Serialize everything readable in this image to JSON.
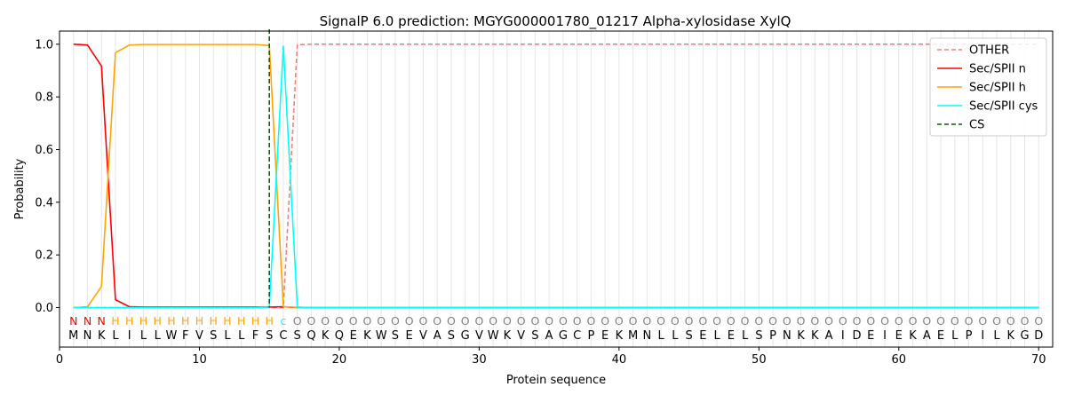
{
  "chart_data": {
    "type": "line",
    "title": "SignalP 6.0 prediction: MGYG000001780_01217 Alpha-xylosidase XylQ",
    "xlabel": "Protein sequence",
    "ylabel": "Probability",
    "xlim": [
      0,
      71
    ],
    "ylim": [
      -0.15,
      1.05
    ],
    "xticks": [
      0,
      10,
      20,
      30,
      40,
      50,
      60,
      70
    ],
    "yticks": [
      0.0,
      0.2,
      0.4,
      0.6,
      0.8,
      1.0
    ],
    "xtick_labels": [
      "0",
      "10",
      "20",
      "30",
      "40",
      "50",
      "60",
      "70"
    ],
    "ytick_labels": [
      "0.0",
      "0.2",
      "0.4",
      "0.6",
      "0.8",
      "1.0"
    ],
    "grid": "vertical lines at each residue",
    "legend_position": "top-right",
    "sequence": [
      "M",
      "N",
      "K",
      "L",
      "I",
      "L",
      "L",
      "W",
      "F",
      "V",
      "S",
      "L",
      "L",
      "F",
      "S",
      "C",
      "S",
      "Q",
      "K",
      "Q",
      "E",
      "K",
      "W",
      "S",
      "E",
      "V",
      "A",
      "S",
      "G",
      "V",
      "W",
      "K",
      "V",
      "S",
      "A",
      "G",
      "C",
      "P",
      "E",
      "K",
      "M",
      "N",
      "L",
      "L",
      "S",
      "E",
      "L",
      "E",
      "L",
      "S",
      "P",
      "N",
      "K",
      "K",
      "A",
      "I",
      "D",
      "E",
      "I",
      "E",
      "K",
      "A",
      "E",
      "L",
      "P",
      "I",
      "L",
      "K",
      "G",
      "D"
    ],
    "labels": [
      "N",
      "N",
      "N",
      "H",
      "H",
      "H",
      "H",
      "H",
      "H",
      "H",
      "H",
      "H",
      "H",
      "H",
      "H",
      "c",
      "O",
      "O",
      "O",
      "O",
      "O",
      "O",
      "O",
      "O",
      "O",
      "O",
      "O",
      "O",
      "O",
      "O",
      "O",
      "O",
      "O",
      "O",
      "O",
      "O",
      "O",
      "O",
      "O",
      "O",
      "O",
      "O",
      "O",
      "O",
      "O",
      "O",
      "O",
      "O",
      "O",
      "O",
      "O",
      "O",
      "O",
      "O",
      "O",
      "O",
      "O",
      "O",
      "O",
      "O",
      "O",
      "O",
      "O",
      "O",
      "O",
      "O",
      "O",
      "O",
      "O",
      "O"
    ],
    "label_colors": {
      "N": "#ff0000",
      "H": "#ffa500",
      "c": "#00ffff",
      "O": "#808080"
    },
    "x": [
      1,
      2,
      3,
      4,
      5,
      6,
      7,
      8,
      9,
      10,
      11,
      12,
      13,
      14,
      15,
      16,
      17,
      18,
      19,
      20,
      21,
      22,
      23,
      24,
      25,
      26,
      27,
      28,
      29,
      30,
      31,
      32,
      33,
      34,
      35,
      36,
      37,
      38,
      39,
      40,
      41,
      42,
      43,
      44,
      45,
      46,
      47,
      48,
      49,
      50,
      51,
      52,
      53,
      54,
      55,
      56,
      57,
      58,
      59,
      60,
      61,
      62,
      63,
      64,
      65,
      66,
      67,
      68,
      69,
      70
    ],
    "series": [
      {
        "name": "OTHER",
        "color": "#f08080",
        "dash": true,
        "values": [
          0,
          0,
          0,
          0,
          0,
          0,
          0,
          0,
          0,
          0,
          0,
          0,
          0,
          0,
          0,
          0,
          0.998,
          1,
          1,
          1,
          1,
          1,
          1,
          1,
          1,
          1,
          1,
          1,
          1,
          1,
          1,
          1,
          1,
          1,
          1,
          1,
          1,
          1,
          1,
          1,
          1,
          1,
          1,
          1,
          1,
          1,
          1,
          1,
          1,
          1,
          1,
          1,
          1,
          1,
          1,
          1,
          1,
          1,
          1,
          1,
          1,
          1,
          1,
          1,
          1,
          1,
          1,
          1,
          1,
          1
        ]
      },
      {
        "name": "Sec/SPII n",
        "color": "#ff0000",
        "dash": false,
        "values": [
          1.0,
          0.997,
          0.917,
          0.03,
          0.003,
          0.002,
          0.002,
          0.002,
          0.002,
          0.002,
          0.002,
          0.002,
          0.002,
          0.002,
          0.002,
          0.003,
          0,
          0,
          0,
          0,
          0,
          0,
          0,
          0,
          0,
          0,
          0,
          0,
          0,
          0,
          0,
          0,
          0,
          0,
          0,
          0,
          0,
          0,
          0,
          0,
          0,
          0,
          0,
          0,
          0,
          0,
          0,
          0,
          0,
          0,
          0,
          0,
          0,
          0,
          0,
          0,
          0,
          0,
          0,
          0,
          0,
          0,
          0,
          0,
          0,
          0,
          0,
          0,
          0,
          0
        ]
      },
      {
        "name": "Sec/SPII h",
        "color": "#ffa500",
        "dash": false,
        "values": [
          0,
          0.003,
          0.08,
          0.968,
          0.997,
          0.999,
          0.999,
          0.999,
          0.999,
          0.999,
          0.999,
          0.999,
          0.999,
          0.999,
          0.995,
          0.003,
          0.001,
          0,
          0,
          0,
          0,
          0,
          0,
          0,
          0,
          0,
          0,
          0,
          0,
          0,
          0,
          0,
          0,
          0,
          0,
          0,
          0,
          0,
          0,
          0,
          0,
          0,
          0,
          0,
          0,
          0,
          0,
          0,
          0,
          0,
          0,
          0,
          0,
          0,
          0,
          0,
          0,
          0,
          0,
          0,
          0,
          0,
          0,
          0,
          0,
          0,
          0,
          0,
          0,
          0
        ]
      },
      {
        "name": "Sec/SPII cys",
        "color": "#00ffff",
        "dash": false,
        "values": [
          0,
          0,
          0,
          0,
          0,
          0,
          0,
          0,
          0,
          0,
          0,
          0,
          0,
          0,
          0.002,
          0.993,
          0.002,
          0,
          0,
          0,
          0,
          0,
          0,
          0,
          0,
          0,
          0,
          0,
          0,
          0,
          0,
          0,
          0,
          0,
          0,
          0,
          0,
          0,
          0,
          0,
          0,
          0,
          0,
          0,
          0,
          0,
          0,
          0,
          0,
          0,
          0,
          0,
          0,
          0,
          0,
          0,
          0,
          0,
          0,
          0,
          0,
          0,
          0,
          0,
          0,
          0,
          0,
          0,
          0,
          0
        ]
      },
      {
        "name": "CS",
        "color": "#006400",
        "dash": true,
        "vline_x": 15
      }
    ]
  }
}
